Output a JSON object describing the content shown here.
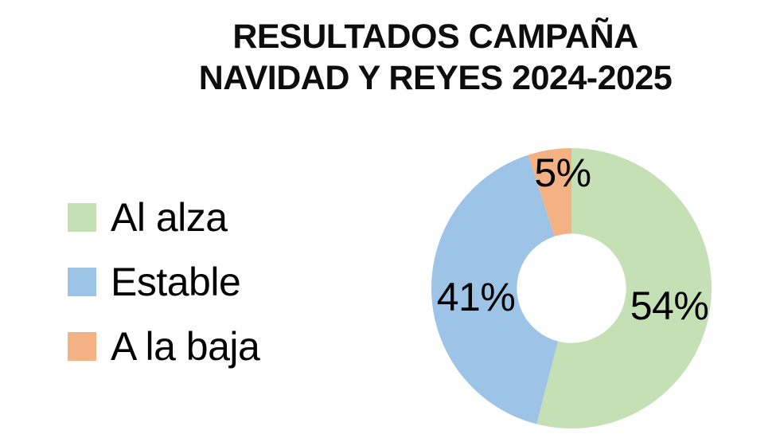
{
  "title": {
    "lines": [
      "RESULTADOS CAMPAÑA",
      "NAVIDAD Y REYES 2024-2025"
    ]
  },
  "legend": {
    "items": [
      {
        "label": "Al alza",
        "color": "#C5E0B4"
      },
      {
        "label": "Estable",
        "color": "#9DC3E6"
      },
      {
        "label": "A la baja",
        "color": "#F4B183"
      }
    ]
  },
  "chart_data": {
    "type": "pie",
    "subtype": "donut",
    "title": "RESULTADOS CAMPAÑA NAVIDAD Y REYES 2024-2025",
    "categories": [
      "Al alza",
      "Estable",
      "A la baja"
    ],
    "values": [
      54,
      41,
      5
    ],
    "unit": "%",
    "labels": [
      "54%",
      "41%",
      "5%"
    ],
    "colors": [
      "#C5E0B4",
      "#9DC3E6",
      "#F4B183"
    ],
    "start_angle_deg": 0,
    "direction": "clockwise",
    "inner_radius_ratio": 0.39,
    "legend_position": "left",
    "background": "#FFFFFF"
  }
}
